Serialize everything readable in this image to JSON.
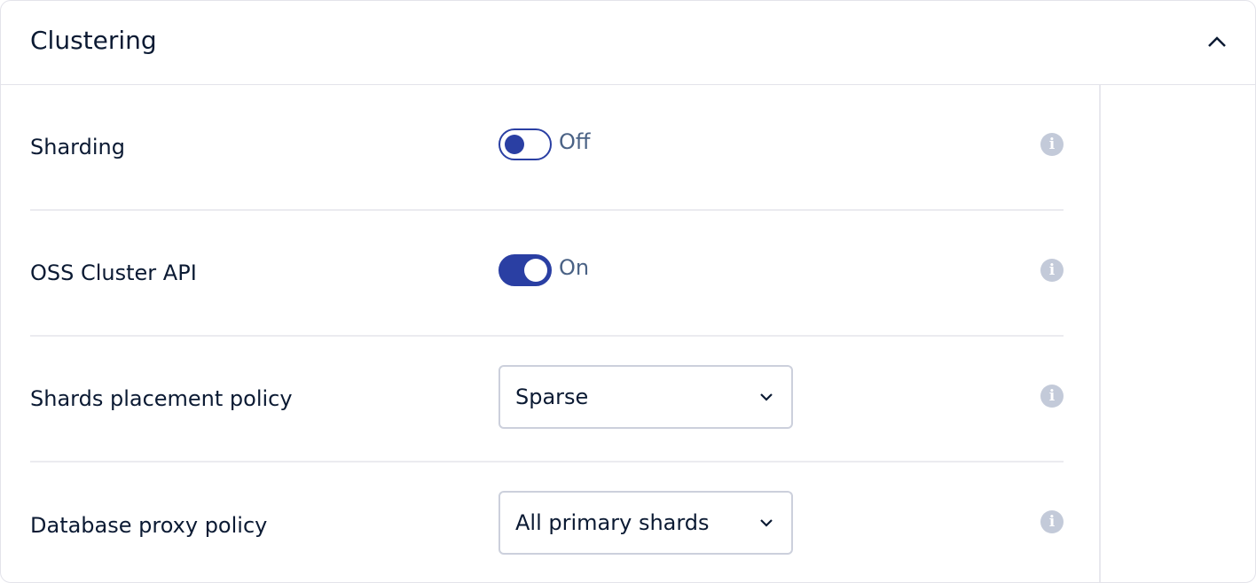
{
  "section": {
    "title": "Clustering",
    "collapse_icon": "chevron-up-icon"
  },
  "rows": [
    {
      "label": "Sharding",
      "control": "toggle",
      "state": "Off",
      "checked": false
    },
    {
      "label": "OSS Cluster API",
      "control": "toggle",
      "state": "On",
      "checked": true
    },
    {
      "label": "Shards placement policy",
      "control": "select",
      "value": "Sparse"
    },
    {
      "label": "Database proxy policy",
      "control": "select",
      "value": "All primary shards"
    }
  ],
  "info_icon": "i",
  "colors": {
    "accent": "#2a3fa3",
    "state_text": "#4a6285",
    "info": "#c3cad9"
  }
}
